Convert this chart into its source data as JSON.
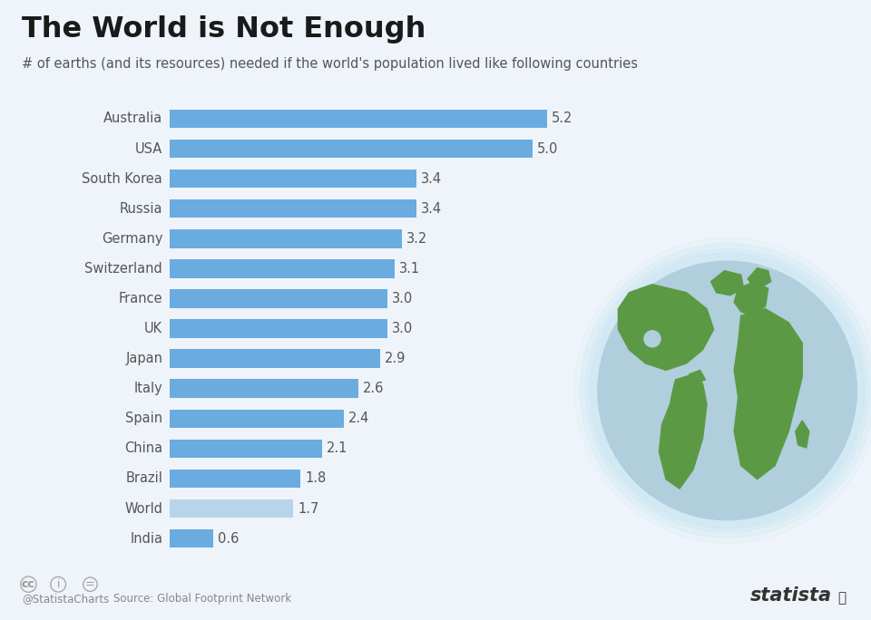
{
  "title": "The World is Not Enough",
  "subtitle": "# of earths (and its resources) needed if the world's population lived like following countries",
  "countries": [
    "Australia",
    "USA",
    "South Korea",
    "Russia",
    "Germany",
    "Switzerland",
    "France",
    "UK",
    "Japan",
    "Italy",
    "Spain",
    "China",
    "Brazil",
    "World",
    "India"
  ],
  "values": [
    5.2,
    5.0,
    3.4,
    3.4,
    3.2,
    3.1,
    3.0,
    3.0,
    2.9,
    2.6,
    2.4,
    2.1,
    1.8,
    1.7,
    0.6
  ],
  "bar_color_normal": "#6aace0",
  "bar_color_world": "#b8d4ea",
  "background_color": "#eef4f9",
  "title_color": "#1a1a1a",
  "subtitle_color": "#555555",
  "value_label_color": "#555555",
  "country_label_color": "#555555",
  "source_text": "Source: Global Footprint Network",
  "footer_handle": "@StatistaCharts",
  "statista_text": "statista",
  "ocean_color": "#b0cedc",
  "land_color": "#5c9944",
  "glow_color": "#d0eaf5"
}
